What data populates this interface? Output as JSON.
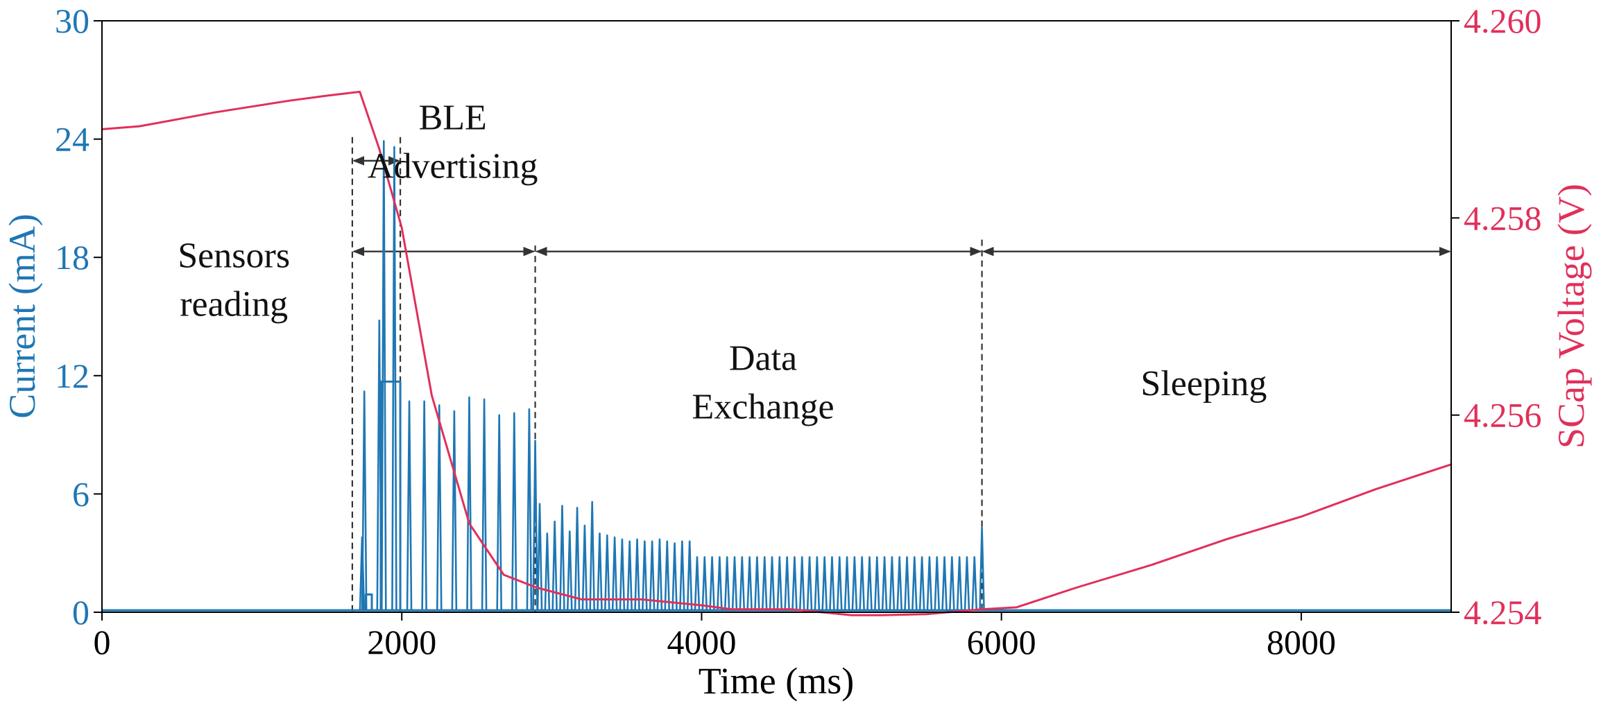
{
  "chart_data": {
    "type": "line",
    "xlabel": "Time (ms)",
    "ylabel_left": "Current (mA)",
    "ylabel_right": "SCap Voltage (V)",
    "xlim": [
      0,
      9000
    ],
    "ylim_left": [
      0,
      30
    ],
    "ylim_right": [
      4.254,
      4.26
    ],
    "x_ticks": [
      "0",
      "2000",
      "4000",
      "6000",
      "8000"
    ],
    "x_tick_values": [
      0,
      2000,
      4000,
      6000,
      8000
    ],
    "y_left_ticks": [
      "0",
      "6",
      "12",
      "18",
      "24",
      "30"
    ],
    "y_left_tick_values": [
      0,
      6,
      12,
      18,
      24,
      30
    ],
    "y_right_ticks": [
      "4.254",
      "4.256",
      "4.258",
      "4.260"
    ],
    "y_right_tick_values": [
      4.254,
      4.256,
      4.258,
      4.26
    ],
    "colors": {
      "current": "#1f77b4",
      "voltage": "#e0305a",
      "annotation": "#333333"
    },
    "phase_boundaries_ms": [
      1670,
      1990,
      2890,
      5870,
      9000
    ],
    "phases": [
      {
        "lines": [
          "Sensors",
          "reading"
        ],
        "x_ms": 880,
        "y_mA": 17.5
      },
      {
        "lines": [
          "BLE",
          "Advertising"
        ],
        "x_ms": 2340,
        "y_mA": 24.5
      },
      {
        "lines": [
          "Data",
          "Exchange"
        ],
        "x_ms": 4410,
        "y_mA": 12.3
      },
      {
        "lines": [
          "Sleeping"
        ],
        "x_ms": 7350,
        "y_mA": 11.0
      }
    ],
    "arrows": [
      {
        "from_ms": 1670,
        "to_ms": 1990,
        "y_mA": 22.9
      },
      {
        "from_ms": 1670,
        "to_ms": 2890,
        "y_mA": 18.3
      },
      {
        "from_ms": 2890,
        "to_ms": 5870,
        "y_mA": 18.3
      },
      {
        "from_ms": 5870,
        "to_ms": 9000,
        "y_mA": 18.3
      }
    ],
    "series": [
      {
        "name": "SCap Voltage",
        "axis": "right",
        "x": [
          0,
          250,
          500,
          750,
          1000,
          1250,
          1500,
          1720,
          1850,
          2000,
          2200,
          2450,
          2680,
          2900,
          3200,
          3600,
          3800,
          4000,
          4200,
          4600,
          5000,
          5200,
          5500,
          5870,
          6100,
          6500,
          7000,
          7500,
          8000,
          8500,
          9000
        ],
        "values": [
          4.2589,
          4.25893,
          4.259,
          4.25907,
          4.25913,
          4.25919,
          4.25924,
          4.25928,
          4.2587,
          4.2579,
          4.2562,
          4.2549,
          4.25438,
          4.25425,
          4.25413,
          4.25413,
          4.2541,
          4.25407,
          4.25403,
          4.25403,
          4.25397,
          4.25397,
          4.25398,
          4.25403,
          4.25405,
          4.25425,
          4.25448,
          4.25474,
          4.25497,
          4.25525,
          4.2555
        ]
      },
      {
        "name": "Current",
        "axis": "left",
        "baseline_mA": 0.1,
        "spikes": [
          {
            "x": 1735,
            "y": 3.8
          },
          {
            "x": 1750,
            "y": 11.2
          },
          {
            "x": 1850,
            "y": 14.8
          },
          {
            "x": 1880,
            "y": 23.9
          },
          {
            "x": 1950,
            "y": 23.6
          },
          {
            "x": 2050,
            "y": 10.7
          },
          {
            "x": 2150,
            "y": 10.7
          },
          {
            "x": 2250,
            "y": 10.5
          },
          {
            "x": 2350,
            "y": 10.2
          },
          {
            "x": 2450,
            "y": 10.9
          },
          {
            "x": 2550,
            "y": 10.8
          },
          {
            "x": 2650,
            "y": 10.0
          },
          {
            "x": 2750,
            "y": 10.1
          },
          {
            "x": 2850,
            "y": 10.3
          },
          {
            "x": 2890,
            "y": 8.7
          },
          {
            "x": 2920,
            "y": 5.5
          },
          {
            "x": 2970,
            "y": 4.0
          },
          {
            "x": 3020,
            "y": 4.6
          },
          {
            "x": 3070,
            "y": 5.4
          },
          {
            "x": 3120,
            "y": 4.1
          },
          {
            "x": 3170,
            "y": 5.3
          },
          {
            "x": 3220,
            "y": 4.4
          },
          {
            "x": 3270,
            "y": 5.6
          },
          {
            "x": 3320,
            "y": 4.0
          },
          {
            "x": 3370,
            "y": 3.9
          },
          {
            "x": 3420,
            "y": 3.8
          },
          {
            "x": 3470,
            "y": 3.7
          },
          {
            "x": 3520,
            "y": 3.6
          },
          {
            "x": 3570,
            "y": 3.7
          },
          {
            "x": 3620,
            "y": 3.6
          },
          {
            "x": 3670,
            "y": 3.6
          },
          {
            "x": 3720,
            "y": 3.7
          },
          {
            "x": 3770,
            "y": 3.6
          },
          {
            "x": 3820,
            "y": 3.5
          },
          {
            "x": 3870,
            "y": 3.6
          },
          {
            "x": 3920,
            "y": 3.6
          }
        ],
        "regular_spikes": {
          "from_ms": 3970,
          "to_ms": 5830,
          "step_ms": 50,
          "y": 2.8
        },
        "last_spike": {
          "x": 5870,
          "y": 4.3
        },
        "pulses": [
          {
            "from_ms": 1760,
            "to_ms": 1800,
            "y": 0.9
          },
          {
            "from_ms": 1860,
            "to_ms": 1990,
            "y": 11.7
          }
        ]
      }
    ]
  }
}
